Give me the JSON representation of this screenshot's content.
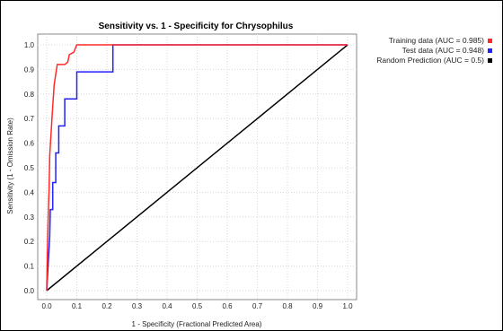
{
  "chart_data": {
    "type": "line",
    "title": "Sensitivity vs. 1 - Specificity for Chrysophilus",
    "xlabel": "1 - Specificity  (Fractional Predicted Area)",
    "ylabel": "Sensitivity  (1 - Omission Rate)",
    "xlim": [
      0,
      1
    ],
    "ylim": [
      0,
      1
    ],
    "xticks": [
      "0.0",
      "0.1",
      "0.2",
      "0.3",
      "0.4",
      "0.5",
      "0.6",
      "0.7",
      "0.8",
      "0.9",
      "1.0"
    ],
    "yticks": [
      "0.0",
      "0.1",
      "0.2",
      "0.3",
      "0.4",
      "0.5",
      "0.6",
      "0.7",
      "0.8",
      "0.9",
      "1.0"
    ],
    "grid": true,
    "legend_position": "right",
    "series": [
      {
        "name": "Training data (AUC = 0.985)",
        "color": "#ff2a2a",
        "points": [
          [
            0,
            0
          ],
          [
            0.002,
            0.15
          ],
          [
            0.005,
            0.3
          ],
          [
            0.008,
            0.42
          ],
          [
            0.01,
            0.55
          ],
          [
            0.015,
            0.65
          ],
          [
            0.02,
            0.75
          ],
          [
            0.025,
            0.84
          ],
          [
            0.03,
            0.88
          ],
          [
            0.035,
            0.92
          ],
          [
            0.06,
            0.92
          ],
          [
            0.07,
            0.93
          ],
          [
            0.075,
            0.96
          ],
          [
            0.09,
            0.97
          ],
          [
            0.1,
            1.0
          ],
          [
            1.0,
            1.0
          ]
        ]
      },
      {
        "name": "Test data (AUC = 0.948)",
        "color": "#2222ff",
        "points": [
          [
            0,
            0
          ],
          [
            0.01,
            0.22
          ],
          [
            0.012,
            0.33
          ],
          [
            0.02,
            0.33
          ],
          [
            0.02,
            0.44
          ],
          [
            0.03,
            0.44
          ],
          [
            0.03,
            0.56
          ],
          [
            0.04,
            0.56
          ],
          [
            0.04,
            0.67
          ],
          [
            0.06,
            0.67
          ],
          [
            0.06,
            0.78
          ],
          [
            0.1,
            0.78
          ],
          [
            0.1,
            0.89
          ],
          [
            0.22,
            0.89
          ],
          [
            0.22,
            1.0
          ],
          [
            1.0,
            1.0
          ]
        ]
      },
      {
        "name": "Random Prediction (AUC = 0.5)",
        "color": "#000000",
        "points": [
          [
            0,
            0
          ],
          [
            1,
            1
          ]
        ]
      }
    ]
  }
}
